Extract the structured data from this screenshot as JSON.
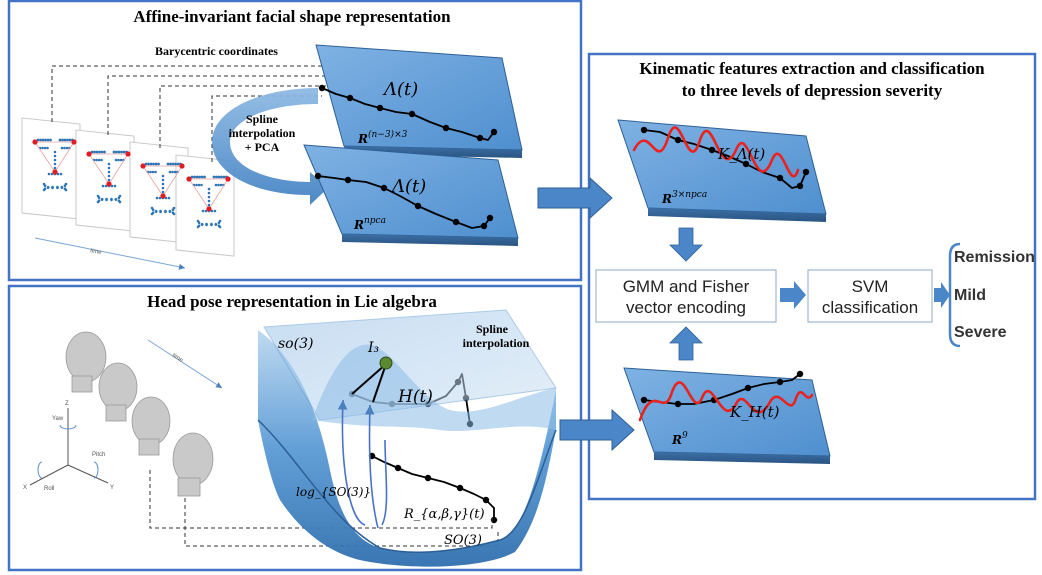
{
  "panels": {
    "shape": {
      "title": "Affine-invariant facial shape representation"
    },
    "headpose": {
      "title": "Head pose representation in Lie algebra"
    },
    "kinematic": {
      "title_line1": "Kinematic features extraction and classification",
      "title_line2": "to three levels of depression severity"
    }
  },
  "shape_panel": {
    "barycentric_label": "Barycentric coordinates",
    "spline_line1": "Spline",
    "spline_line2": "interpolation",
    "spline_line3": "+ PCA",
    "curve_label_top": "Λ(t)",
    "curve_label_bottom": "Λ(t)",
    "space_top": "R^{(n−3)×3}",
    "space_bottom": "R^{npca}",
    "time_label": "time"
  },
  "headpose_panel": {
    "lie_algebra": "so(3)",
    "spline_line1": "Spline",
    "spline_line2": "interpolation",
    "identity": "I₃",
    "curve_upper": "H(t)",
    "curve_lower": "R_{α,β,γ}(t)",
    "log_map": "log_{SO(3)}",
    "group": "SO(3)",
    "time_label": "time",
    "axis_labels": {
      "yaw": "Yaw",
      "pitch": "Pitch",
      "roll": "Roll",
      "x": "X",
      "y": "Y",
      "z": "Z"
    }
  },
  "kinematic_panel": {
    "top_curve": "K_Λ(t)",
    "top_space": "R^{3×npca}",
    "bottom_curve": "K_H(t)",
    "bottom_space": "R⁹",
    "gmm_line1": "GMM and Fisher",
    "gmm_line2": "vector encoding",
    "svm_line1": "SVM",
    "svm_line2": "classification",
    "classes": [
      "Remission",
      "Mild",
      "Severe"
    ]
  },
  "colors": {
    "panel_border": "#4472c4",
    "plane": "#5b9bd5",
    "arrow": "#4a86c8",
    "kinematic": "#e8231f",
    "landmark": "#2e75b6",
    "landmark_red": "#e31b23"
  }
}
